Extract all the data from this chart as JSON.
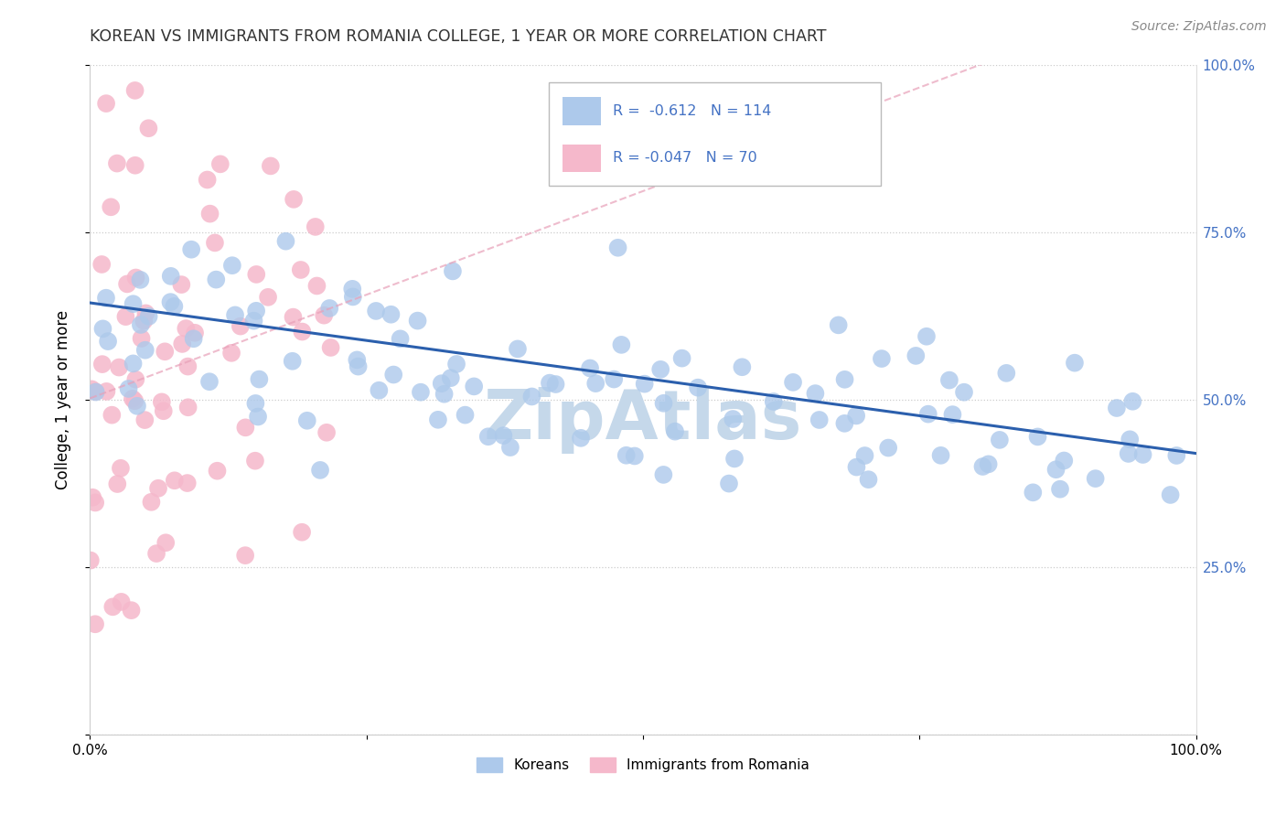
{
  "title": "KOREAN VS IMMIGRANTS FROM ROMANIA COLLEGE, 1 YEAR OR MORE CORRELATION CHART",
  "source_text": "Source: ZipAtlas.com",
  "ylabel": "College, 1 year or more",
  "xlim": [
    0.0,
    1.0
  ],
  "ylim": [
    0.0,
    1.0
  ],
  "korean_R": -0.612,
  "korean_N": 114,
  "romania_R": -0.047,
  "romania_N": 70,
  "korean_color": "#adc9eb",
  "romania_color": "#f5b8cb",
  "trendline_color": "#2b5fad",
  "romania_trendline_color": "#e8a0b8",
  "watermark_color": "#c5d8ea",
  "legend_korean_label": "Koreans",
  "legend_romania_label": "Immigrants from Romania",
  "korean_seed": 42,
  "romania_seed": 99
}
